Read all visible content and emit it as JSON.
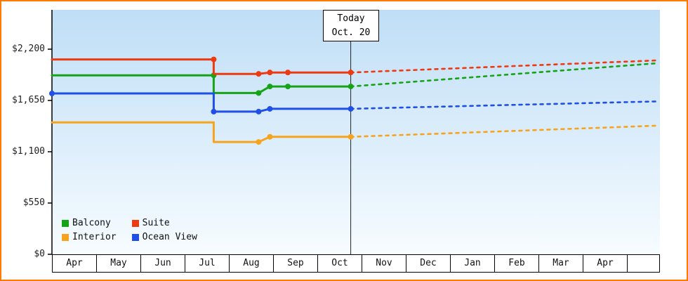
{
  "frame": {
    "border_color": "#ff7b00"
  },
  "chart_data": {
    "type": "line",
    "description_axes": {
      "x": "months",
      "y": "price USD"
    },
    "ylim": [
      0,
      2300
    ],
    "month_labels": [
      "Apr",
      "May",
      "Jun",
      "Jul",
      "Aug",
      "Sep",
      "Oct",
      "Nov",
      "Dec",
      "Jan",
      "Feb",
      "Mar",
      "Apr"
    ],
    "y_ticks": [
      {
        "label": "$2,200",
        "value": 2200
      },
      {
        "label": "$1,650",
        "value": 1650
      },
      {
        "label": "$1,100",
        "value": 1100
      },
      {
        "label": "$550",
        "value": 550
      },
      {
        "label": "$0",
        "value": 0
      }
    ],
    "today": {
      "line1": "Today",
      "line2": "Oct. 20",
      "x": 6.65
    },
    "series": [
      {
        "name": "Balcony",
        "color": "#16a316",
        "solid_points": [
          [
            0,
            1920
          ],
          [
            3.6,
            1920
          ],
          [
            3.6,
            1730
          ],
          [
            4.6,
            1730
          ],
          [
            4.85,
            1800
          ],
          [
            6.65,
            1800
          ]
        ],
        "forecast_points": [
          [
            6.65,
            1800
          ],
          [
            13.5,
            2050
          ]
        ],
        "markers": [
          [
            3.6,
            1920
          ],
          [
            4.6,
            1730
          ],
          [
            4.85,
            1800
          ],
          [
            5.25,
            1800
          ],
          [
            6.65,
            1800
          ]
        ]
      },
      {
        "name": "Suite",
        "color": "#ee3a10",
        "solid_points": [
          [
            0,
            2090
          ],
          [
            3.6,
            2090
          ],
          [
            3.6,
            1935
          ],
          [
            4.6,
            1935
          ],
          [
            4.85,
            1950
          ],
          [
            6.65,
            1950
          ]
        ],
        "forecast_points": [
          [
            6.65,
            1950
          ],
          [
            13.5,
            2080
          ]
        ],
        "markers": [
          [
            3.6,
            2090
          ],
          [
            4.6,
            1935
          ],
          [
            4.85,
            1950
          ],
          [
            5.25,
            1950
          ],
          [
            6.65,
            1950
          ]
        ]
      },
      {
        "name": "Interior",
        "color": "#f6a41d",
        "solid_points": [
          [
            0,
            1415
          ],
          [
            3.6,
            1415
          ],
          [
            3.6,
            1205
          ],
          [
            4.6,
            1205
          ],
          [
            4.85,
            1260
          ],
          [
            6.65,
            1260
          ]
        ],
        "forecast_points": [
          [
            6.65,
            1260
          ],
          [
            13.5,
            1380
          ]
        ],
        "markers": [
          [
            4.6,
            1205
          ],
          [
            4.85,
            1260
          ],
          [
            6.65,
            1260
          ]
        ]
      },
      {
        "name": "Ocean View",
        "color": "#1f4fe8",
        "solid_points": [
          [
            0,
            1725
          ],
          [
            3.6,
            1725
          ],
          [
            3.6,
            1530
          ],
          [
            4.6,
            1530
          ],
          [
            4.85,
            1560
          ],
          [
            6.65,
            1560
          ]
        ],
        "forecast_points": [
          [
            6.65,
            1560
          ],
          [
            13.5,
            1640
          ]
        ],
        "markers": [
          [
            0,
            1725
          ],
          [
            3.6,
            1530
          ],
          [
            4.6,
            1530
          ],
          [
            4.85,
            1560
          ],
          [
            6.65,
            1560
          ]
        ]
      }
    ]
  }
}
